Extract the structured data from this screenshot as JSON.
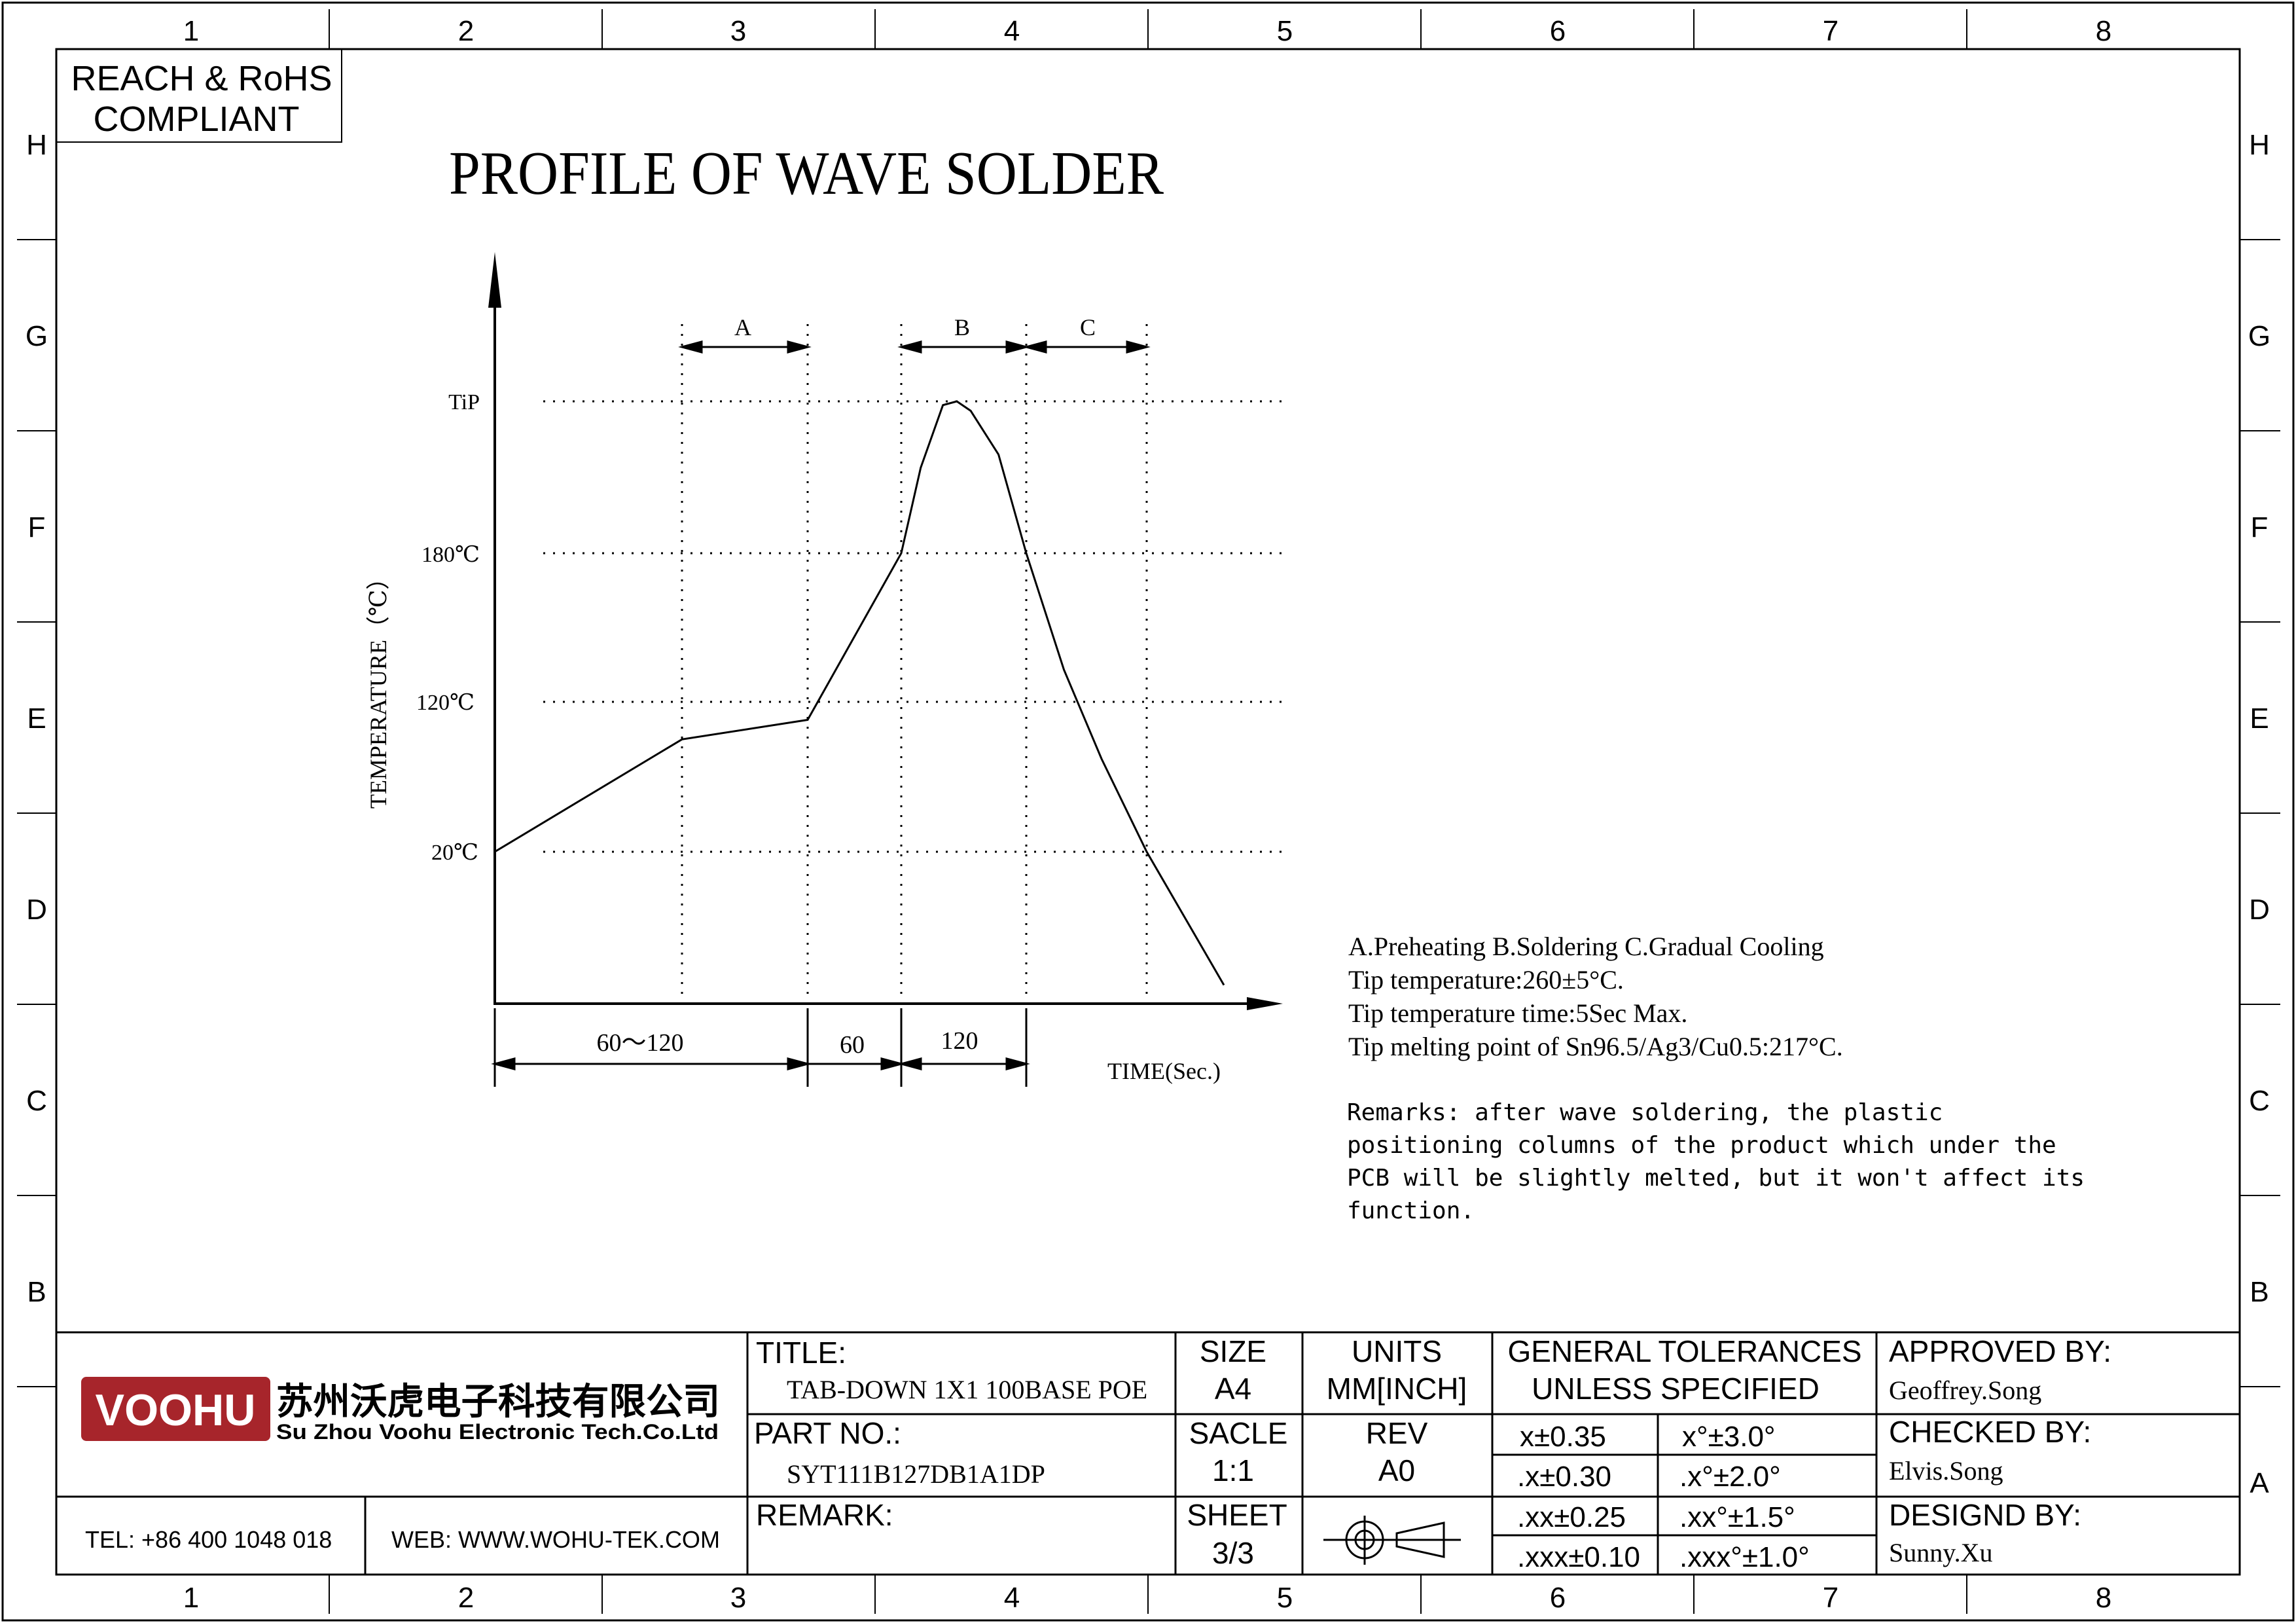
{
  "border": {
    "columns": [
      "1",
      "2",
      "3",
      "4",
      "5",
      "6",
      "7",
      "8"
    ],
    "rows": [
      "H",
      "G",
      "F",
      "E",
      "D",
      "C",
      "B",
      "A"
    ]
  },
  "compliance": {
    "line1": "REACH & RoHS",
    "line2": "COMPLIANT"
  },
  "page_title": "PROFILE OF WAVE SOLDER",
  "chart_data": {
    "type": "line",
    "ylabel": "TEMPERATURE（℃）",
    "xlabel": "TIME(Sec.)",
    "y_levels": [
      {
        "label": "TiP",
        "value": 260
      },
      {
        "label": "180℃",
        "value": 180
      },
      {
        "label": "120℃",
        "value": 120
      },
      {
        "label": "20℃",
        "value": 20
      }
    ],
    "zones": [
      {
        "label": "A"
      },
      {
        "label": "B"
      },
      {
        "label": "C"
      }
    ],
    "durations": [
      "60～120",
      "60",
      "120"
    ],
    "curve_description_points": [
      {
        "t": 0,
        "temp": 20
      },
      {
        "t": 60,
        "temp": 95
      },
      {
        "t": 120,
        "temp": 108
      },
      {
        "t": 150,
        "temp": 180
      },
      {
        "t": 157,
        "temp": 225
      },
      {
        "t": 165,
        "temp": 258
      },
      {
        "t": 170,
        "temp": 260
      },
      {
        "t": 175,
        "temp": 255
      },
      {
        "t": 185,
        "temp": 232
      },
      {
        "t": 195,
        "temp": 180
      },
      {
        "t": 210,
        "temp": 133
      },
      {
        "t": 225,
        "temp": 82
      },
      {
        "t": 243,
        "temp": 20
      },
      {
        "t": 270,
        "temp": -50
      }
    ]
  },
  "notes": {
    "line1": "A.Preheating  B.Soldering  C.Gradual Cooling",
    "line2": "Tip temperature:260±5°C.",
    "line3": "Tip temperature time:5Sec Max.",
    "line4": "Tip melting point of Sn96.5/Ag3/Cu0.5:217°C.",
    "remarks": [
      "Remarks: after wave soldering, the plastic",
      "positioning columns of the product  which under the",
      "PCB will be slightly melted, but it won't affect its",
      "function."
    ]
  },
  "title_block": {
    "logo_text": "VOOHU",
    "company_cn": "苏州沃虎电子科技有限公司",
    "company_en": "Su Zhou Voohu Electronic Tech.Co.Ltd",
    "tel": "TEL: +86 400 1048 018",
    "web": "WEB: WWW.WOHU-TEK.COM",
    "title_label": "TITLE:",
    "title_value": "TAB-DOWN 1X1 100BASE POE",
    "part_label": "PART NO.:",
    "part_value": "SYT111B127DB1A1DP",
    "remark_label": "REMARK:",
    "size_label": "SIZE",
    "size_value": "A4",
    "scale_label": "SACLE",
    "scale_value": "1:1",
    "sheet_label": "SHEET",
    "sheet_value": "3/3",
    "units_label": "UNITS",
    "units_value": "MM[INCH]",
    "rev_label": "REV",
    "rev_value": "A0",
    "tol_line1": "GENERAL TOLERANCES",
    "tol_line2": "UNLESS SPECIFIED",
    "tol_rows": [
      [
        "x±0.35",
        "x°±3.0°"
      ],
      [
        ".x±0.30",
        ".x°±2.0°"
      ],
      [
        ".xx±0.25",
        ".xx°±1.5°"
      ],
      [
        ".xxx±0.10",
        ".xxx°±1.0°"
      ]
    ],
    "approved_label": "APPROVED BY:",
    "approved_value": "Geoffrey.Song",
    "checked_label": "CHECKED BY:",
    "checked_value": "Elvis.Song",
    "design_label": "DESIGND BY:",
    "design_value": "Sunny.Xu"
  },
  "colors": {
    "logo_bg": "#A7252B",
    "line": "#000000"
  }
}
